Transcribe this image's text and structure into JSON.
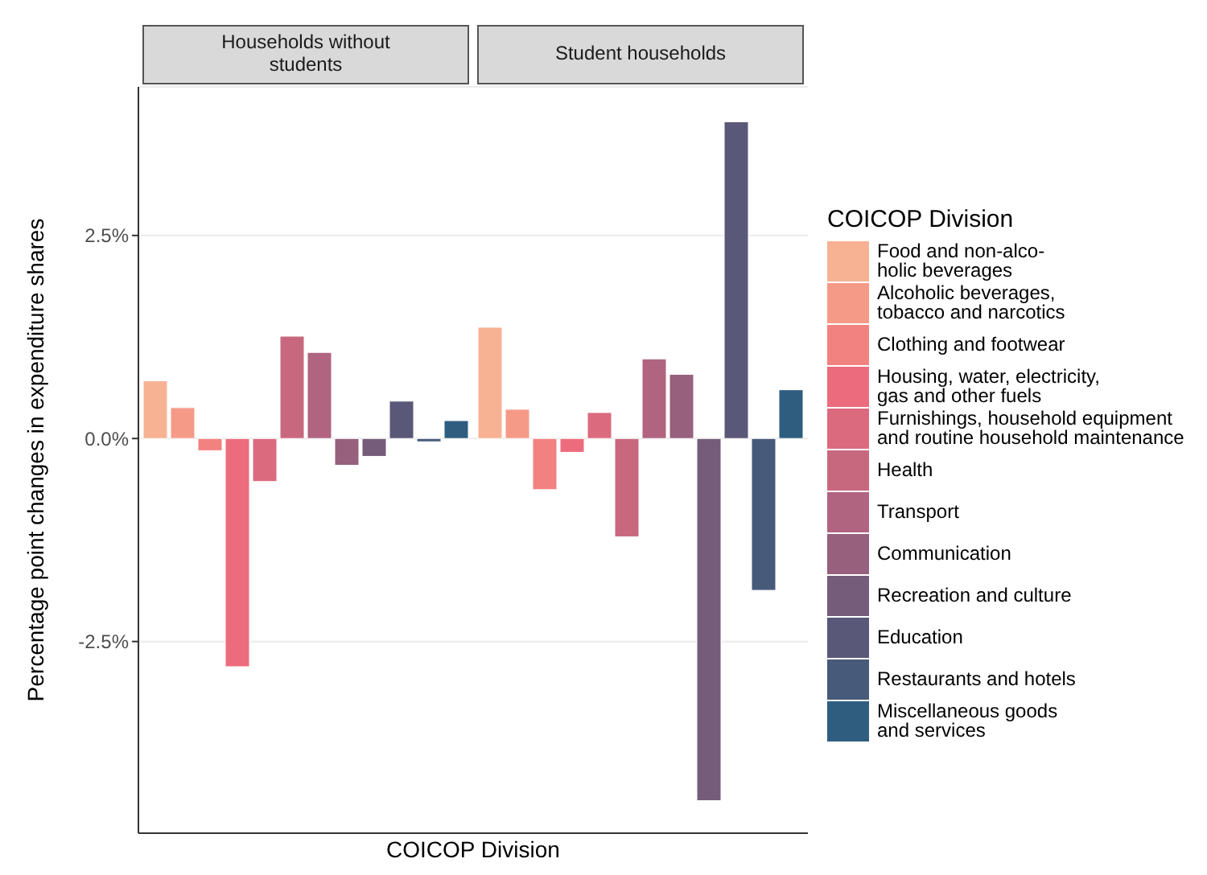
{
  "chart_data": {
    "type": "bar",
    "ylabel": "Percentage point changes in expenditure shares",
    "xlabel": "COICOP Division",
    "legend_title": "COICOP Division",
    "legend": "right",
    "categories": [
      "Households without\nstudents",
      "Student households"
    ],
    "series": [
      {
        "name": "Food and non-alco-\nholic beverages",
        "color": "#f7b294",
        "values": [
          0.71,
          1.37
        ]
      },
      {
        "name": "Alcoholic beverages,\ntobacco and narcotics",
        "color": "#f69a88",
        "values": [
          0.38,
          0.36
        ]
      },
      {
        "name": "Clothing and footwear",
        "color": "#f2827f",
        "values": [
          -0.15,
          -0.63
        ]
      },
      {
        "name": "Housing, water, electricity,\ngas and other fuels",
        "color": "#ec6c7d",
        "values": [
          -2.81,
          -0.17
        ]
      },
      {
        "name": "Furnishings, household equipment\nand routine household maintenance",
        "color": "#dc6a7e",
        "values": [
          -0.53,
          0.32
        ]
      },
      {
        "name": "Health",
        "color": "#c8687f",
        "values": [
          1.26,
          -1.21
        ]
      },
      {
        "name": "Transport",
        "color": "#b0647f",
        "values": [
          1.06,
          0.98
        ]
      },
      {
        "name": "Communication",
        "color": "#97607c",
        "values": [
          -0.33,
          0.79
        ]
      },
      {
        "name": "Recreation and culture",
        "color": "#745c7a",
        "values": [
          -0.22,
          -4.46
        ]
      },
      {
        "name": "Education",
        "color": "#5a5878",
        "values": [
          0.46,
          3.9
        ]
      },
      {
        "name": "Restaurants and hotels",
        "color": "#475a7a",
        "values": [
          -0.04,
          -1.87
        ]
      },
      {
        "name": "Miscellaneous goods\nand services",
        "color": "#2f5d80",
        "values": [
          0.22,
          0.6
        ]
      }
    ],
    "ylim": [
      -4.86,
      4.33
    ],
    "yticks": [
      {
        "value": -2.5,
        "label": "-2.5%"
      },
      {
        "value": 0,
        "label": "0.0%"
      },
      {
        "value": 2.5,
        "label": "2.5%"
      }
    ],
    "grid": "y"
  }
}
